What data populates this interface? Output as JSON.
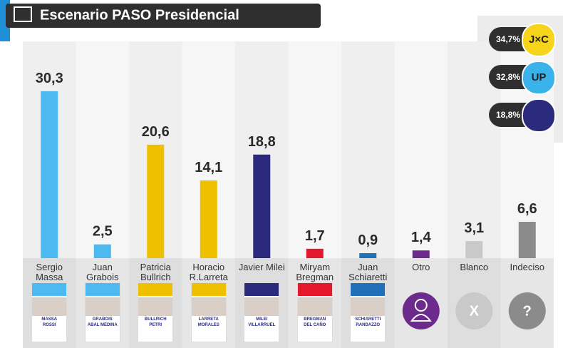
{
  "chart_data": {
    "type": "bar",
    "title": "Escenario PASO Presidencial",
    "categories": [
      "Sergio Massa",
      "Juan Grabois",
      "Patricia Bullrich",
      "Horacio R.Larreta",
      "Javier Milei",
      "Miryam Bregman",
      "Juan Schiaretti",
      "Otro",
      "Blanco",
      "Indeciso"
    ],
    "values": [
      30.3,
      2.5,
      20.6,
      14.1,
      18.8,
      1.7,
      0.9,
      1.4,
      3.1,
      6.6
    ],
    "value_labels": [
      "30,3",
      "2,5",
      "20,6",
      "14,1",
      "18,8",
      "1,7",
      "0,9",
      "1,4",
      "3,1",
      "6,6"
    ],
    "colors": [
      "#4cb9f1",
      "#4cb9f1",
      "#efc000",
      "#efc000",
      "#2a2b7c",
      "#e3182c",
      "#1f70b6",
      "#6b2a8c",
      "#c9c9c9",
      "#8b8b8b"
    ],
    "ylim": [
      0,
      40
    ],
    "ballots": [
      [
        "MASSA",
        "ROSSI"
      ],
      [
        "GRABOIS",
        "ABAL MEDINA"
      ],
      [
        "BULLRICH",
        "PETRI"
      ],
      [
        "LARRETA",
        "MORALES"
      ],
      [
        "MILEI",
        "VILLARRUEL"
      ],
      [
        "BREGMAN",
        "DEL CAÑO"
      ],
      [
        "SCHIARETTI",
        "RANDAZZO"
      ]
    ],
    "icons": [
      "X",
      "?"
    ]
  },
  "coalitions": [
    {
      "label": "34,7%",
      "logo": "J×C"
    },
    {
      "label": "32,8%",
      "logo": "UP"
    },
    {
      "label": "18,8%"
    }
  ]
}
